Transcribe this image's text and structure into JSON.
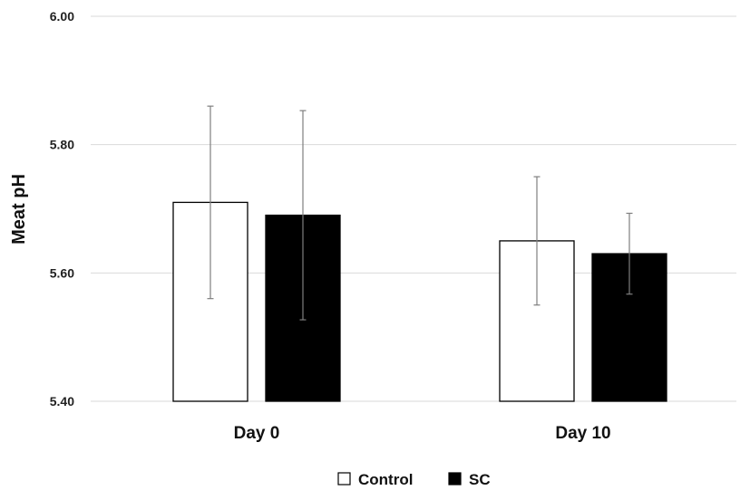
{
  "chart_data": {
    "type": "bar",
    "title": "",
    "xlabel": "",
    "ylabel": "Meat pH",
    "ylim": [
      5.4,
      6.0
    ],
    "yticks": [
      "5.40",
      "5.60",
      "5.80",
      "6.00"
    ],
    "grid": true,
    "legend_position": "bottom-center",
    "categories": [
      "Day 0",
      "Day 10"
    ],
    "series": [
      {
        "name": "Control",
        "values": [
          5.71,
          5.65
        ],
        "errors": [
          0.15,
          0.1
        ],
        "fill": "#ffffff",
        "stroke": "#000000"
      },
      {
        "name": "SC",
        "values": [
          5.69,
          5.63
        ],
        "errors": [
          0.163,
          0.063
        ],
        "fill": "#000000",
        "stroke": "#000000"
      }
    ]
  }
}
